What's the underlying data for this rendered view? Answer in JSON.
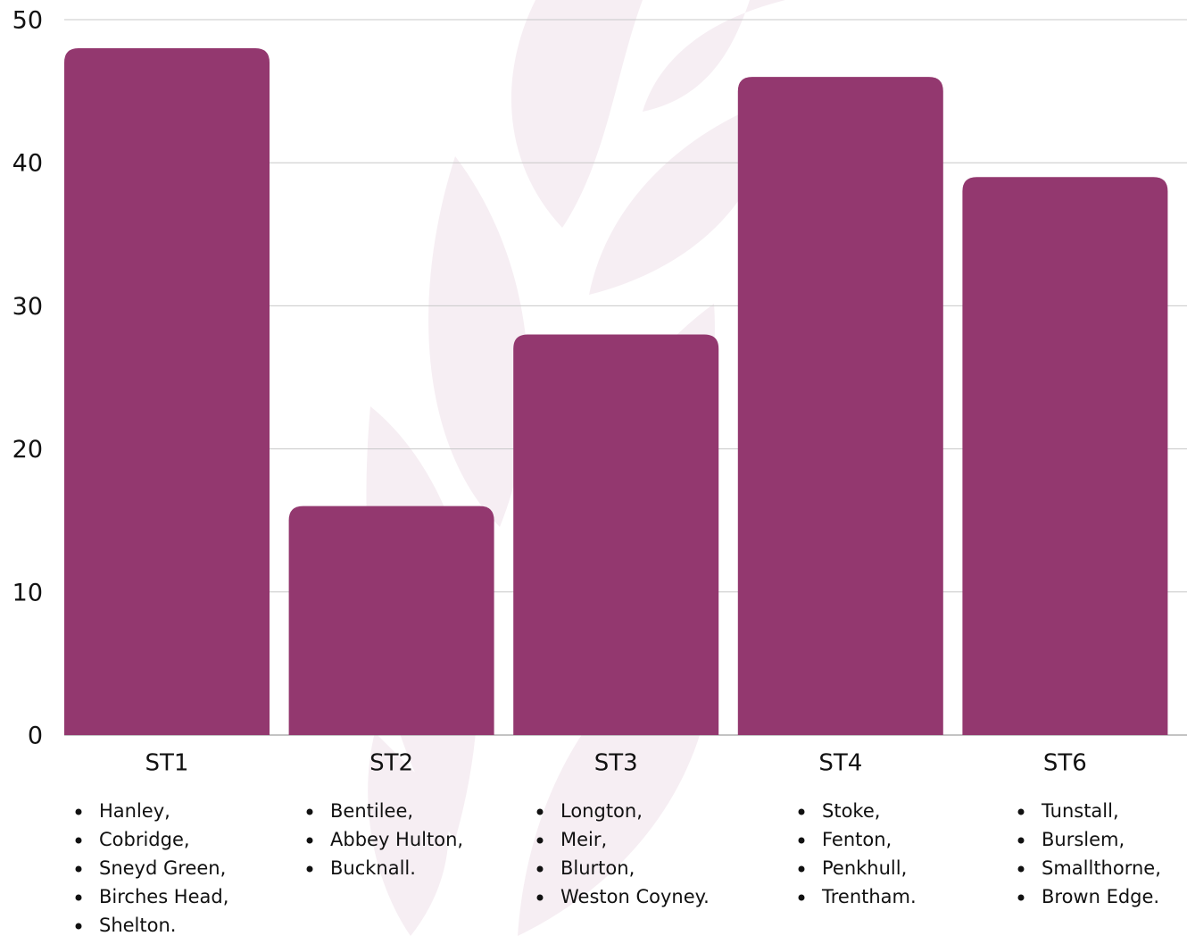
{
  "chart_data": {
    "type": "bar",
    "categories": [
      "ST1",
      "ST2",
      "ST3",
      "ST4",
      "ST6"
    ],
    "values": [
      48,
      16,
      28,
      46,
      39
    ],
    "color": "#93386f",
    "ylim": [
      0,
      50
    ],
    "yticks": [
      0,
      10,
      20,
      30,
      40,
      50
    ],
    "grid": true,
    "areas": [
      [
        "Hanley,",
        "Cobridge,",
        "Sneyd Green,",
        "Birches Head,",
        "Shelton."
      ],
      [
        "Bentilee,",
        "Abbey Hulton,",
        "Bucknall."
      ],
      [
        "Longton,",
        "Meir,",
        "Blurton,",
        "Weston Coyney."
      ],
      [
        "Stoke,",
        "Fenton,",
        "Penkhull,",
        "Trentham."
      ],
      [
        "Tunstall,",
        "Burslem,",
        "Smallthorne,",
        "Brown Edge."
      ]
    ]
  }
}
